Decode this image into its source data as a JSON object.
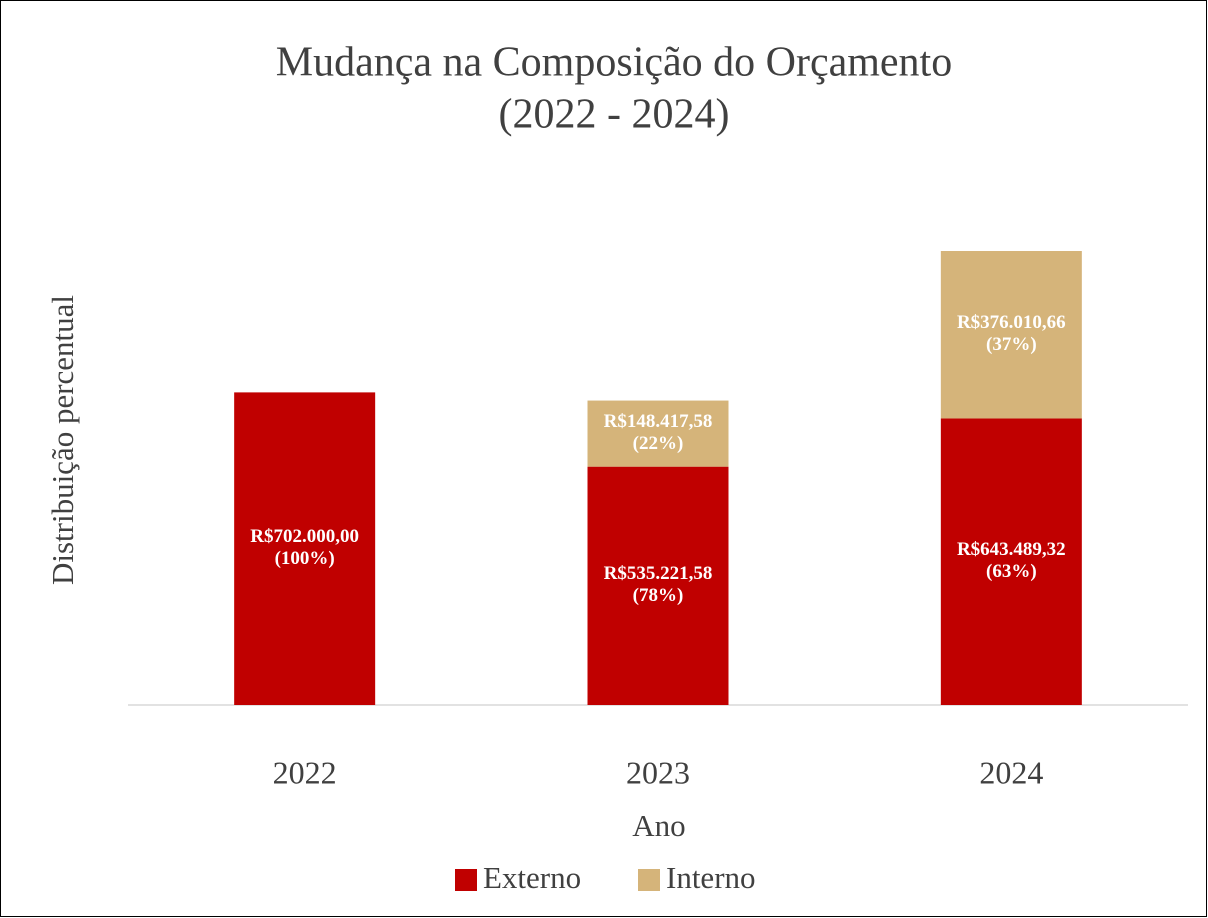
{
  "chart_data": {
    "type": "bar",
    "stacked": true,
    "title": [
      "Mudança na Composição do Orçamento",
      "(2022 - 2024)"
    ],
    "x_label": "Ano",
    "y_label": "Distribuição percentual",
    "categories": [
      "2022",
      "2023",
      "2024"
    ],
    "series": [
      {
        "name": "Externo",
        "color": "#c00000",
        "values": [
          702000.0,
          535221.58,
          643489.32
        ],
        "value_labels": [
          [
            "R$702.000,00",
            "(100%)"
          ],
          [
            "R$535.221,58",
            "(78%)"
          ],
          [
            "R$643.489,32",
            "(63%)"
          ]
        ]
      },
      {
        "name": "Interno",
        "color": "#d5b47a",
        "values": [
          null,
          148417.58,
          376010.66
        ],
        "value_labels": [
          null,
          [
            "R$148.417,58",
            "(22%)"
          ],
          [
            "R$376.010,66",
            "(37%)"
          ]
        ]
      }
    ],
    "legend": "bottom"
  }
}
